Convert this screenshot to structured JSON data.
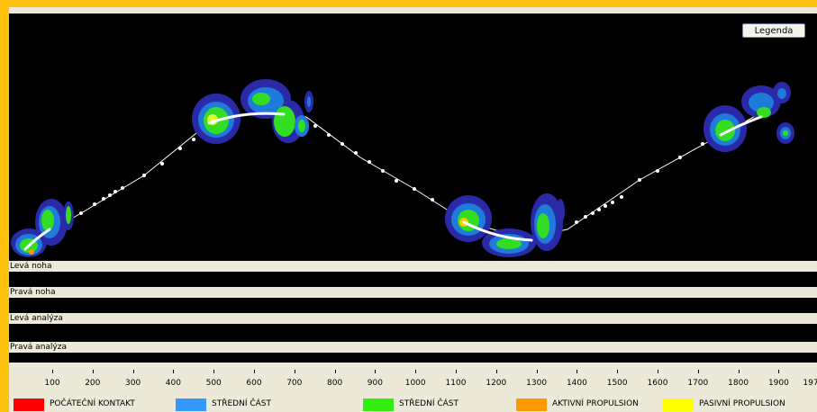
{
  "toolbar": {
    "legend_label": "Legenda"
  },
  "rows": [
    {
      "label": "Levá noha"
    },
    {
      "label": "Pravá noha"
    },
    {
      "label": "Levá analýza"
    },
    {
      "label": "Pravá analýza"
    }
  ],
  "axis": {
    "ticks": [
      "100",
      "200",
      "300",
      "400",
      "500",
      "600",
      "700",
      "800",
      "900",
      "1000",
      "1100",
      "1200",
      "1300",
      "1400",
      "1500",
      "1600",
      "1700",
      "1800",
      "1900",
      "197"
    ]
  },
  "legend": [
    {
      "label": "POČÁTEČNÍ KONTAKT",
      "color": "#ff0000"
    },
    {
      "label": "STŘEDNÍ ČÁST",
      "color": "#3399ff"
    },
    {
      "label": "STŘEDNÍ ČÁST",
      "color": "#33ee11"
    },
    {
      "label": "AKTIVNÍ PROPULSION",
      "color": "#ff9900"
    },
    {
      "label": "PASIVNÍ PROPULSION",
      "color": "#ffff00"
    }
  ],
  "colors": {
    "frame": "#ffc20e",
    "panel": "#ece9d8",
    "canvas": "#000000"
  }
}
